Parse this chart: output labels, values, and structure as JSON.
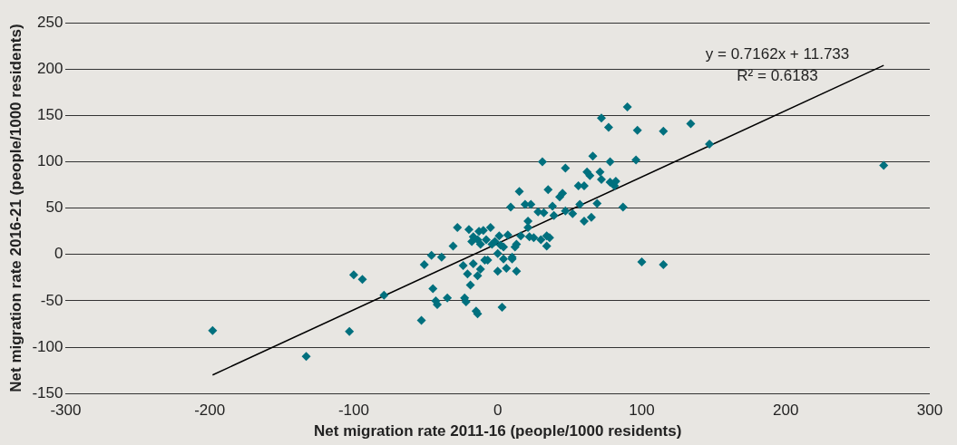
{
  "chart_data": {
    "type": "scatter",
    "xlabel": "Net migration rate 2011-16 (people/1000 residents)",
    "ylabel": "Net migration rate 2016-21 (people/1000 residents)",
    "annotations": [
      "y = 0.7162x + 11.733",
      "R² = 0.6183"
    ],
    "xlim": [
      -300,
      300
    ],
    "xticks": [
      -300,
      -200,
      -100,
      0,
      100,
      200,
      300
    ],
    "ylim": [
      -150,
      250
    ],
    "yticks": [
      -150,
      -100,
      -50,
      0,
      50,
      100,
      150,
      200,
      250
    ],
    "grid": "y",
    "marker": "diamond",
    "series": [
      {
        "color": "#00707e",
        "x": [
          -198,
          -133,
          -103,
          -100,
          -94,
          -79,
          -53,
          -51,
          -46,
          -45,
          -43,
          -42,
          -39,
          -35,
          -31,
          -28,
          -24,
          -23,
          -22,
          -21,
          -20,
          -19,
          -18,
          -17,
          -17,
          -15,
          -14,
          -14,
          -14,
          -13,
          -12,
          -12,
          -10,
          -9,
          -8,
          -7,
          -5,
          -4,
          -2,
          0,
          0,
          1,
          2,
          3,
          4,
          4,
          6,
          7,
          9,
          10,
          10,
          12,
          13,
          13,
          15,
          16,
          19,
          21,
          21,
          22,
          23,
          25,
          28,
          30,
          31,
          32,
          34,
          34,
          35,
          36,
          38,
          39,
          43,
          45,
          47,
          47,
          52,
          56,
          57,
          60,
          60,
          62,
          64,
          65,
          66,
          69,
          71,
          72,
          72,
          77,
          78,
          78,
          81,
          82,
          87,
          90,
          97,
          96,
          100,
          115,
          115,
          134,
          147,
          268
        ],
        "values": [
          -82,
          -110,
          -83,
          -22,
          -27,
          -44,
          -71,
          -11,
          -1,
          -37,
          -50,
          -54,
          -3,
          -47,
          9,
          29,
          -12,
          -47,
          -51,
          -21,
          27,
          -33,
          14,
          19,
          -10,
          -61,
          -64,
          -23,
          16,
          25,
          11,
          -16,
          26,
          -6,
          16,
          -6,
          29,
          11,
          14,
          1,
          -18,
          20,
          10,
          -57,
          -5,
          8,
          -15,
          21,
          51,
          -5,
          -3,
          8,
          -18,
          11,
          68,
          20,
          54,
          36,
          29,
          19,
          54,
          18,
          46,
          16,
          100,
          45,
          20,
          9,
          70,
          18,
          52,
          42,
          62,
          66,
          93,
          47,
          44,
          74,
          54,
          74,
          36,
          89,
          85,
          40,
          106,
          55,
          89,
          81,
          147,
          137,
          78,
          100,
          74,
          79,
          51,
          159,
          134,
          102,
          -8,
          133,
          -11,
          141,
          119,
          96
        ]
      },
      {
        "type": "line",
        "color": "#000000",
        "marker": "none",
        "x": [
          -198,
          268
        ],
        "values": [
          -130,
          204
        ]
      }
    ]
  }
}
